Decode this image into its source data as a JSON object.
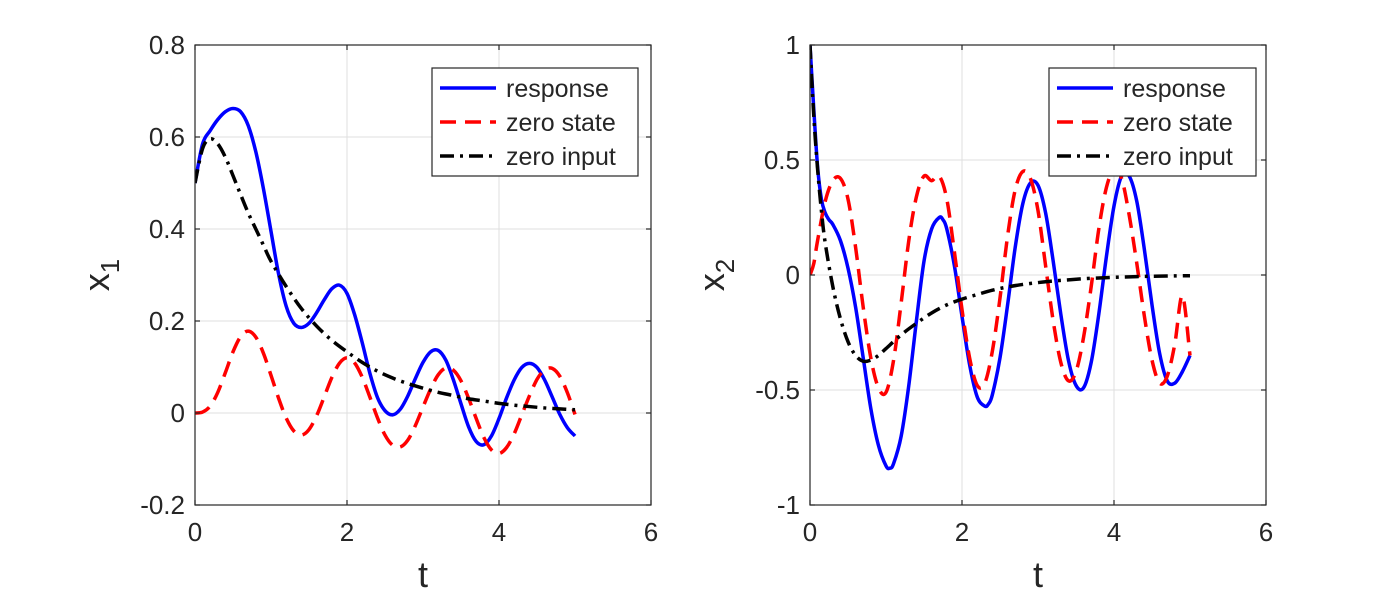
{
  "chart_data": [
    {
      "type": "line",
      "xlabel": "t",
      "ylabel": "x",
      "ylabel_subscript": "1",
      "xlim": [
        0,
        6
      ],
      "ylim": [
        -0.2,
        0.8
      ],
      "xticks": [
        "0",
        "2",
        "4",
        "6"
      ],
      "yticks": [
        "-0.2",
        "0",
        "0.2",
        "0.4",
        "0.6",
        "0.8"
      ],
      "grid": true,
      "legend_position": "top-right",
      "series": [
        {
          "name": "response",
          "style": "solid",
          "color": "#0000ff",
          "x": [
            0,
            0.1,
            0.2,
            0.3,
            0.4,
            0.5,
            0.6,
            0.7,
            0.8,
            0.9,
            1.0,
            1.1,
            1.2,
            1.3,
            1.4,
            1.5,
            1.6,
            1.7,
            1.8,
            1.9,
            2.0,
            2.1,
            2.2,
            2.3,
            2.4,
            2.5,
            2.6,
            2.7,
            2.8,
            2.9,
            3.0,
            3.1,
            3.2,
            3.3,
            3.4,
            3.5,
            3.6,
            3.7,
            3.8,
            3.9,
            4.0,
            4.1,
            4.2,
            4.3,
            4.4,
            4.5,
            4.6,
            4.7,
            4.8,
            4.9,
            5.0
          ],
          "y": [
            0.5,
            0.585,
            0.614,
            0.638,
            0.655,
            0.662,
            0.655,
            0.625,
            0.568,
            0.488,
            0.395,
            0.302,
            0.232,
            0.195,
            0.186,
            0.195,
            0.218,
            0.246,
            0.27,
            0.278,
            0.26,
            0.214,
            0.153,
            0.087,
            0.034,
            0.005,
            -0.004,
            0.008,
            0.037,
            0.075,
            0.11,
            0.133,
            0.136,
            0.115,
            0.072,
            0.02,
            -0.03,
            -0.062,
            -0.069,
            -0.05,
            -0.012,
            0.033,
            0.072,
            0.099,
            0.108,
            0.099,
            0.072,
            0.035,
            -0.003,
            -0.032,
            -0.05
          ]
        },
        {
          "name": "zero state",
          "style": "dashed",
          "color": "#ff0000",
          "x": [
            0,
            0.1,
            0.2,
            0.3,
            0.4,
            0.5,
            0.6,
            0.7,
            0.8,
            0.9,
            1.0,
            1.1,
            1.2,
            1.3,
            1.4,
            1.5,
            1.6,
            1.7,
            1.8,
            1.9,
            2.0,
            2.1,
            2.2,
            2.3,
            2.4,
            2.5,
            2.6,
            2.7,
            2.8,
            2.9,
            3.0,
            3.1,
            3.2,
            3.3,
            3.4,
            3.5,
            3.6,
            3.7,
            3.8,
            3.9,
            4.0,
            4.1,
            4.2,
            4.3,
            4.4,
            4.5,
            4.6,
            4.7,
            4.8,
            4.9,
            5.0
          ],
          "y": [
            0,
            0.002,
            0.015,
            0.045,
            0.088,
            0.133,
            0.166,
            0.178,
            0.165,
            0.13,
            0.082,
            0.032,
            -0.011,
            -0.039,
            -0.048,
            -0.036,
            -0.006,
            0.035,
            0.077,
            0.108,
            0.12,
            0.109,
            0.078,
            0.035,
            -0.01,
            -0.048,
            -0.07,
            -0.074,
            -0.059,
            -0.027,
            0.013,
            0.052,
            0.083,
            0.098,
            0.093,
            0.07,
            0.032,
            -0.012,
            -0.053,
            -0.08,
            -0.088,
            -0.075,
            -0.045,
            -0.004,
            0.037,
            0.073,
            0.094,
            0.097,
            0.08,
            0.044,
            -0.003
          ]
        },
        {
          "name": "zero input",
          "style": "dashdot",
          "color": "#000000",
          "x": [
            0,
            0.1,
            0.2,
            0.3,
            0.4,
            0.5,
            0.6,
            0.7,
            0.8,
            0.9,
            1.0,
            1.2,
            1.4,
            1.6,
            1.8,
            2.0,
            2.2,
            2.4,
            2.6,
            2.8,
            3.0,
            3.2,
            3.4,
            3.6,
            3.8,
            4.0,
            4.2,
            4.4,
            4.6,
            4.8,
            5.0
          ],
          "y": [
            0.5,
            0.575,
            0.596,
            0.585,
            0.556,
            0.516,
            0.475,
            0.435,
            0.4,
            0.365,
            0.33,
            0.275,
            0.227,
            0.189,
            0.158,
            0.133,
            0.11,
            0.091,
            0.076,
            0.064,
            0.054,
            0.045,
            0.038,
            0.031,
            0.026,
            0.021,
            0.017,
            0.014,
            0.011,
            0.009,
            0.007
          ]
        }
      ]
    },
    {
      "type": "line",
      "xlabel": "t",
      "ylabel": "x",
      "ylabel_subscript": "2",
      "xlim": [
        0,
        6
      ],
      "ylim": [
        -1,
        1
      ],
      "xticks": [
        "0",
        "2",
        "4",
        "6"
      ],
      "yticks": [
        "-1",
        "-0.5",
        "0",
        "0.5",
        "1"
      ],
      "grid": true,
      "legend_position": "top-right",
      "series": [
        {
          "name": "response",
          "style": "solid",
          "color": "#0000ff",
          "x": [
            0,
            0.05,
            0.1,
            0.15,
            0.2,
            0.25,
            0.3,
            0.4,
            0.5,
            0.6,
            0.7,
            0.8,
            0.9,
            1.0,
            1.05,
            1.1,
            1.2,
            1.3,
            1.4,
            1.5,
            1.6,
            1.7,
            1.75,
            1.8,
            1.9,
            2.0,
            2.1,
            2.2,
            2.3,
            2.35,
            2.4,
            2.5,
            2.6,
            2.7,
            2.8,
            2.9,
            3.0,
            3.1,
            3.2,
            3.3,
            3.4,
            3.5,
            3.6,
            3.7,
            3.8,
            3.9,
            4.0,
            4.1,
            4.2,
            4.3,
            4.4,
            4.5,
            4.6,
            4.7,
            4.8,
            4.9,
            5.0
          ],
          "y": [
            1.0,
            0.72,
            0.47,
            0.33,
            0.27,
            0.24,
            0.22,
            0.15,
            0.03,
            -0.14,
            -0.36,
            -0.58,
            -0.74,
            -0.83,
            -0.84,
            -0.82,
            -0.7,
            -0.48,
            -0.2,
            0.06,
            0.2,
            0.25,
            0.24,
            0.2,
            0.04,
            -0.18,
            -0.39,
            -0.53,
            -0.57,
            -0.56,
            -0.52,
            -0.36,
            -0.13,
            0.12,
            0.31,
            0.4,
            0.39,
            0.27,
            0.06,
            -0.17,
            -0.37,
            -0.48,
            -0.49,
            -0.38,
            -0.17,
            0.08,
            0.3,
            0.43,
            0.43,
            0.32,
            0.11,
            -0.13,
            -0.34,
            -0.46,
            -0.47,
            -0.42,
            -0.35
          ]
        },
        {
          "name": "zero state",
          "style": "dashed",
          "color": "#ff0000",
          "x": [
            0,
            0.05,
            0.1,
            0.2,
            0.3,
            0.4,
            0.5,
            0.6,
            0.7,
            0.8,
            0.9,
            1.0,
            1.1,
            1.2,
            1.3,
            1.4,
            1.5,
            1.6,
            1.7,
            1.8,
            1.9,
            2.0,
            2.1,
            2.2,
            2.3,
            2.4,
            2.5,
            2.6,
            2.7,
            2.8,
            2.9,
            3.0,
            3.1,
            3.2,
            3.3,
            3.4,
            3.5,
            3.6,
            3.7,
            3.8,
            3.9,
            4.0,
            4.1,
            4.2,
            4.3,
            4.4,
            4.5,
            4.6,
            4.7,
            4.8,
            4.9,
            5.0
          ],
          "y": [
            0,
            0.05,
            0.15,
            0.32,
            0.41,
            0.42,
            0.33,
            0.12,
            -0.14,
            -0.36,
            -0.49,
            -0.51,
            -0.37,
            -0.12,
            0.15,
            0.34,
            0.43,
            0.41,
            0.43,
            0.33,
            0.1,
            -0.15,
            -0.36,
            -0.48,
            -0.47,
            -0.33,
            -0.1,
            0.17,
            0.37,
            0.45,
            0.42,
            0.28,
            0.04,
            -0.2,
            -0.38,
            -0.46,
            -0.42,
            -0.27,
            -0.05,
            0.2,
            0.38,
            0.46,
            0.42,
            0.26,
            0.05,
            -0.18,
            -0.37,
            -0.47,
            -0.44,
            -0.3,
            -0.09,
            -0.35
          ]
        },
        {
          "name": "zero input",
          "style": "dashdot",
          "color": "#000000",
          "x": [
            0,
            0.05,
            0.1,
            0.15,
            0.2,
            0.3,
            0.4,
            0.5,
            0.6,
            0.7,
            0.8,
            0.9,
            1.0,
            1.2,
            1.4,
            1.6,
            1.8,
            2.0,
            2.2,
            2.4,
            2.6,
            2.8,
            3.0,
            3.2,
            3.4,
            3.6,
            3.8,
            4.0,
            4.2,
            4.4,
            4.6,
            4.8,
            5.0
          ],
          "y": [
            1.0,
            0.69,
            0.46,
            0.28,
            0.14,
            -0.05,
            -0.19,
            -0.29,
            -0.35,
            -0.375,
            -0.37,
            -0.35,
            -0.32,
            -0.26,
            -0.21,
            -0.165,
            -0.13,
            -0.105,
            -0.085,
            -0.066,
            -0.052,
            -0.041,
            -0.033,
            -0.026,
            -0.021,
            -0.016,
            -0.013,
            -0.01,
            -0.008,
            -0.006,
            -0.005,
            -0.004,
            -0.003
          ]
        }
      ]
    }
  ]
}
